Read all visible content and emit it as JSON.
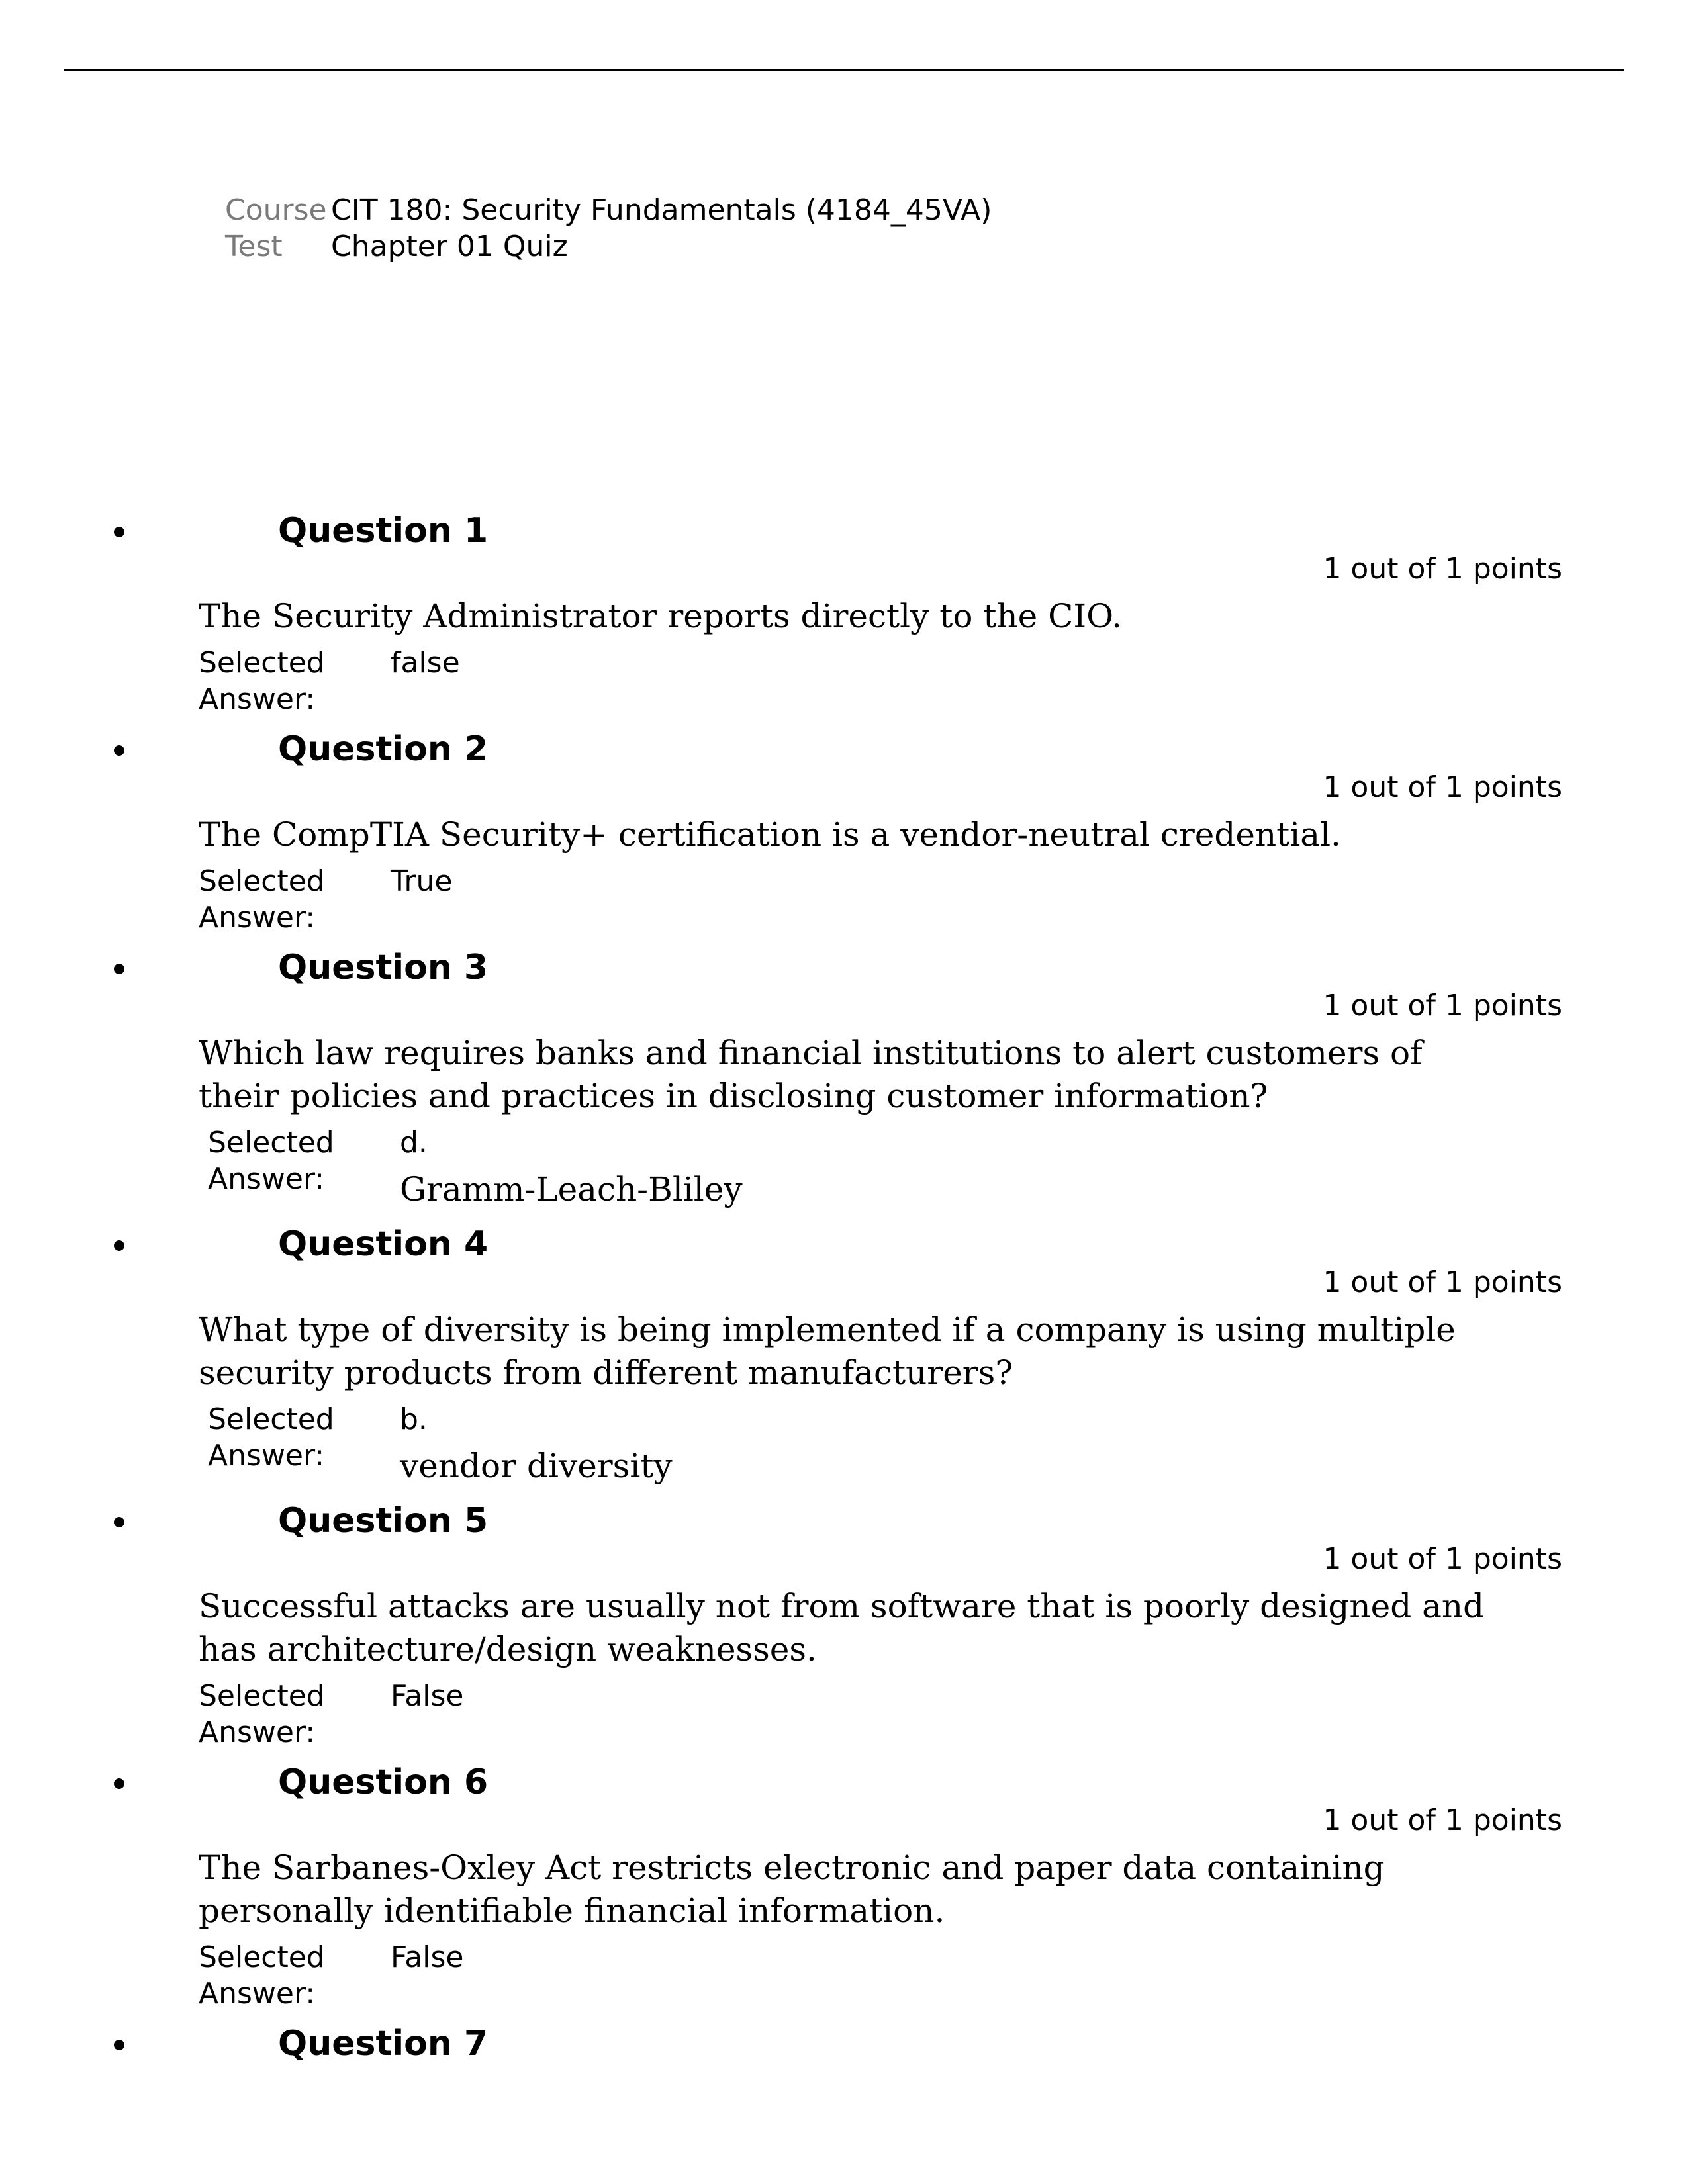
{
  "meta": {
    "course_label": "Course",
    "course_value": "CIT 180: Security Fundamentals (4184_45VA)",
    "test_label": "Test",
    "test_value": "Chapter 01 Quiz"
  },
  "points_text": "1 out of 1 points",
  "sa_label": "Selected Answer:",
  "questions": [
    {
      "title": "Question 1",
      "text": "The Security Administrator reports directly to the CIO.",
      "answer_style": "sans_short",
      "answer_value": "false"
    },
    {
      "title": "Question 2",
      "text": "The CompTIA Security+ certification is a vendor-neutral credential.",
      "answer_style": "sans_short",
      "answer_value": "True"
    },
    {
      "title": "Question 3",
      "text": "Which law requires banks and financial institutions to alert customers of their policies and practices in disclosing customer information?",
      "answer_style": "letter_serif",
      "answer_letter": "d.",
      "answer_serif": "Gramm-Leach-Bliley"
    },
    {
      "title": "Question 4",
      "text": "What type of diversity is being implemented if a company is using multiple security products from different manufacturers?",
      "answer_style": "letter_serif",
      "answer_letter": "b.",
      "answer_serif": "vendor diversity"
    },
    {
      "title": "Question 5",
      "text": "Successful attacks are usually not from software that is poorly designed and has architecture/design weaknesses.",
      "answer_style": "sans_short",
      "answer_value": "False"
    },
    {
      "title": "Question 6",
      "text": "The Sarbanes-Oxley Act restricts electronic and paper data containing personally identifiable financial information.",
      "answer_style": "sans_short",
      "answer_value": "False"
    },
    {
      "title": "Question 7",
      "text": "",
      "answer_style": "none"
    }
  ]
}
